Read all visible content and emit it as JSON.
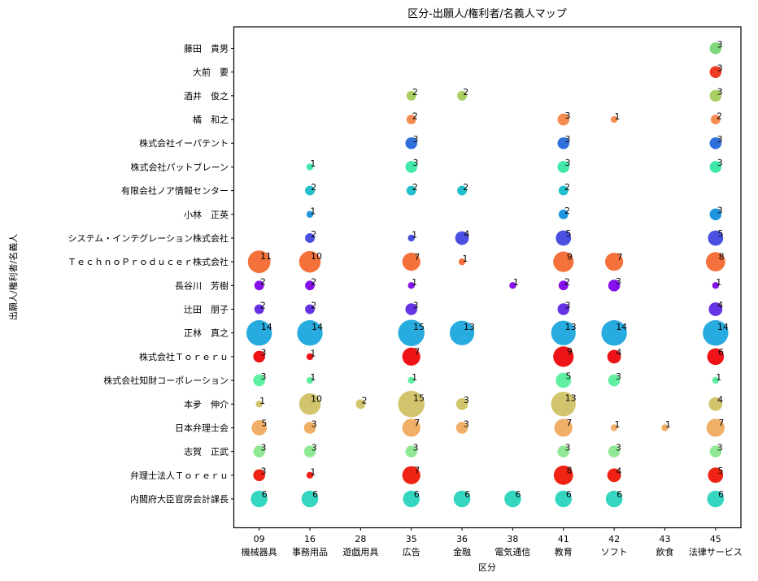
{
  "chart_data": {
    "type": "scatter",
    "variant": "bubble-map",
    "title": "区分-出願人/権利者/名義人マップ",
    "xlabel": "区分",
    "ylabel": "出願人/権利者/名義人",
    "legend": "none",
    "grid": false,
    "background": "#ffffff",
    "frame_color": "#000000",
    "size_rule": "radius_px = 4.2 * sqrt(value)",
    "x_categories": [
      {
        "code": "09",
        "label": "機械器具"
      },
      {
        "code": "16",
        "label": "事務用品"
      },
      {
        "code": "28",
        "label": "遊戯用具"
      },
      {
        "code": "35",
        "label": "広告"
      },
      {
        "code": "36",
        "label": "金融"
      },
      {
        "code": "38",
        "label": "電気通信"
      },
      {
        "code": "41",
        "label": "教育"
      },
      {
        "code": "42",
        "label": "ソフト"
      },
      {
        "code": "43",
        "label": "飲食"
      },
      {
        "code": "45",
        "label": "法律サービス"
      }
    ],
    "rows": [
      {
        "name": "藤田　貴男",
        "color": "#7fd97c",
        "values": [
          null,
          null,
          null,
          null,
          null,
          null,
          null,
          null,
          null,
          3
        ]
      },
      {
        "name": "大前　要",
        "color": "#ee3b23",
        "values": [
          null,
          null,
          null,
          null,
          null,
          null,
          null,
          null,
          null,
          3
        ]
      },
      {
        "name": "酒井　俊之",
        "color": "#a9ce62",
        "values": [
          null,
          null,
          null,
          2,
          2,
          null,
          null,
          null,
          null,
          3
        ]
      },
      {
        "name": "橘　和之",
        "color": "#f58c51",
        "values": [
          null,
          null,
          null,
          2,
          null,
          null,
          3,
          1,
          null,
          2
        ]
      },
      {
        "name": "株式会社イーパテント",
        "color": "#2e70dc",
        "values": [
          null,
          null,
          null,
          3,
          null,
          null,
          3,
          null,
          null,
          3
        ]
      },
      {
        "name": "株式会社パットブレーン",
        "color": "#41e8aa",
        "values": [
          null,
          1,
          null,
          3,
          null,
          null,
          3,
          null,
          null,
          3
        ]
      },
      {
        "name": "有限会社ノア情報センター",
        "color": "#23bfcb",
        "values": [
          null,
          2,
          null,
          2,
          2,
          null,
          2,
          null,
          null,
          null
        ]
      },
      {
        "name": "小林　正英",
        "color": "#1e96df",
        "values": [
          null,
          1,
          null,
          null,
          null,
          null,
          2,
          null,
          null,
          3
        ]
      },
      {
        "name": "システム・インテグレーション株式会社",
        "color": "#4a4fe2",
        "values": [
          null,
          2,
          null,
          1,
          4,
          null,
          5,
          null,
          null,
          5
        ]
      },
      {
        "name": "ＴｅｃｈｎｏＰｒｏｄｕｃｅｒ株式会社",
        "color": "#f4713c",
        "values": [
          11,
          10,
          null,
          7,
          1,
          null,
          9,
          7,
          null,
          8
        ]
      },
      {
        "name": "長谷川　芳樹",
        "color": "#8512ea",
        "values": [
          2,
          2,
          null,
          1,
          null,
          1,
          2,
          3,
          null,
          1
        ]
      },
      {
        "name": "辻田　朋子",
        "color": "#6633e4",
        "values": [
          2,
          2,
          null,
          3,
          null,
          null,
          3,
          null,
          null,
          4
        ]
      },
      {
        "name": "正林　真之",
        "color": "#28ace0",
        "values": [
          14,
          14,
          null,
          15,
          13,
          null,
          13,
          14,
          null,
          14
        ]
      },
      {
        "name": "株式会社Ｔｏｒｅｒｕ",
        "color": "#ee1316",
        "values": [
          3,
          1,
          null,
          7,
          null,
          null,
          9,
          4,
          null,
          6
        ]
      },
      {
        "name": "株式会社知財コーポレーション",
        "color": "#5ff0a2",
        "values": [
          3,
          1,
          null,
          1,
          null,
          null,
          5,
          3,
          null,
          1
        ]
      },
      {
        "name": "本夛　伸介",
        "color": "#d2c46d",
        "values": [
          1,
          10,
          2,
          15,
          3,
          null,
          13,
          null,
          null,
          4
        ]
      },
      {
        "name": "日本弁理士会",
        "color": "#f0ae66",
        "values": [
          5,
          3,
          null,
          7,
          3,
          null,
          7,
          1,
          1,
          7
        ]
      },
      {
        "name": "志賀　正武",
        "color": "#90e895",
        "values": [
          3,
          3,
          null,
          3,
          null,
          null,
          3,
          3,
          null,
          3
        ]
      },
      {
        "name": "弁理士法人Ｔｏｒｅｒｕ",
        "color": "#ee2313",
        "values": [
          3,
          1,
          null,
          7,
          null,
          null,
          8,
          4,
          null,
          5
        ]
      },
      {
        "name": "内閣府大臣官房会計課長",
        "color": "#35d6c0",
        "values": [
          6,
          6,
          null,
          6,
          6,
          6,
          6,
          6,
          null,
          6
        ]
      }
    ]
  }
}
